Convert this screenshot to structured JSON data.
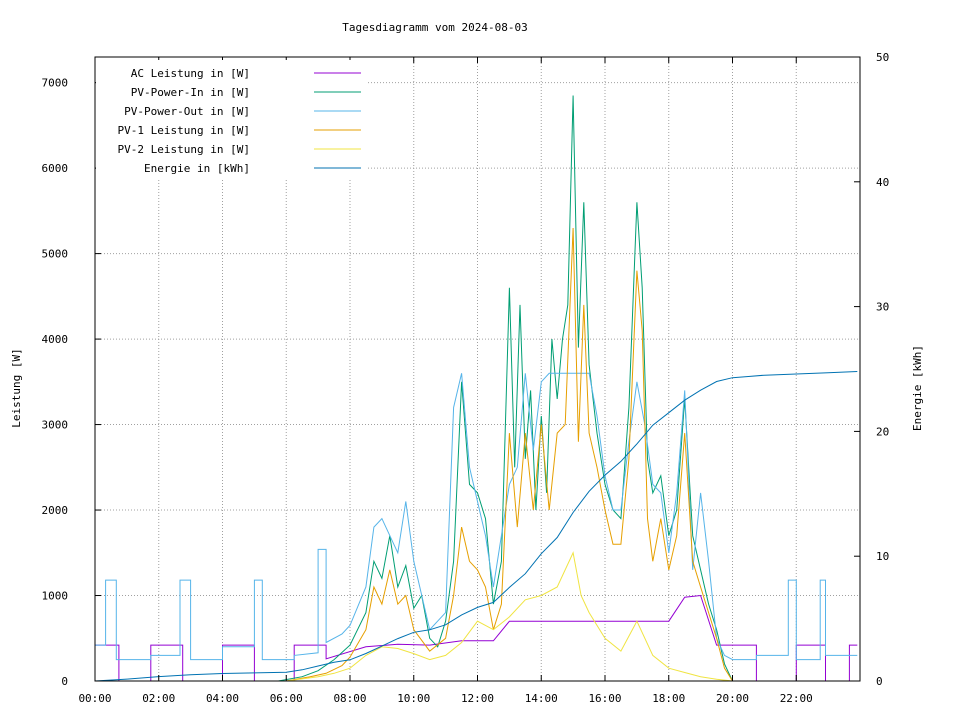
{
  "chart_data": {
    "type": "line",
    "title": "Tagesdiagramm vom 2024-08-03",
    "ylabel": "Leistung [W]",
    "y2label": "Energie [kWh]",
    "xlim": [
      "00:00",
      "24:00"
    ],
    "ylim": [
      0,
      7300
    ],
    "y2lim": [
      0,
      50
    ],
    "grid": true,
    "legend_position": "top-left",
    "x_ticks": [
      "00:00",
      "02:00",
      "04:00",
      "06:00",
      "08:00",
      "10:00",
      "12:00",
      "14:00",
      "16:00",
      "18:00",
      "20:00",
      "22:00"
    ],
    "y_ticks": [
      0,
      1000,
      2000,
      3000,
      4000,
      5000,
      6000,
      7000
    ],
    "y2_ticks": [
      0,
      10,
      20,
      30,
      40,
      50
    ],
    "series": [
      {
        "name": "AC Leistung in [W]",
        "color": "#9400d3",
        "axis": "left",
        "points": [
          [
            "00:00",
            420
          ],
          [
            "00:45",
            420
          ],
          [
            "00:45",
            0
          ],
          [
            "01:45",
            0
          ],
          [
            "01:45",
            420
          ],
          [
            "02:45",
            420
          ],
          [
            "02:45",
            0
          ],
          [
            "04:00",
            0
          ],
          [
            "04:00",
            420
          ],
          [
            "05:00",
            420
          ],
          [
            "05:00",
            0
          ],
          [
            "06:15",
            0
          ],
          [
            "06:15",
            420
          ],
          [
            "07:15",
            420
          ],
          [
            "07:15",
            260
          ],
          [
            "08:30",
            400
          ],
          [
            "09:30",
            430
          ],
          [
            "10:30",
            420
          ],
          [
            "11:30",
            470
          ],
          [
            "12:30",
            470
          ],
          [
            "13:00",
            700
          ],
          [
            "18:00",
            700
          ],
          [
            "18:30",
            980
          ],
          [
            "19:00",
            1000
          ],
          [
            "19:30",
            420
          ],
          [
            "20:45",
            420
          ],
          [
            "20:45",
            0
          ],
          [
            "22:00",
            0
          ],
          [
            "22:00",
            420
          ],
          [
            "22:55",
            420
          ],
          [
            "22:55",
            0
          ],
          [
            "23:40",
            0
          ],
          [
            "23:40",
            420
          ],
          [
            "23:55",
            420
          ]
        ]
      },
      {
        "name": "PV-Power-In in [W]",
        "color": "#009e73",
        "axis": "left",
        "points": [
          [
            "05:45",
            0
          ],
          [
            "06:30",
            50
          ],
          [
            "07:00",
            120
          ],
          [
            "07:30",
            250
          ],
          [
            "08:00",
            420
          ],
          [
            "08:30",
            800
          ],
          [
            "08:45",
            1400
          ],
          [
            "09:00",
            1200
          ],
          [
            "09:15",
            1700
          ],
          [
            "09:30",
            1100
          ],
          [
            "09:45",
            1350
          ],
          [
            "10:00",
            850
          ],
          [
            "10:15",
            1000
          ],
          [
            "10:30",
            500
          ],
          [
            "10:45",
            400
          ],
          [
            "11:00",
            700
          ],
          [
            "11:15",
            1400
          ],
          [
            "11:30",
            3500
          ],
          [
            "11:45",
            2300
          ],
          [
            "12:00",
            2200
          ],
          [
            "12:15",
            1900
          ],
          [
            "12:30",
            900
          ],
          [
            "12:45",
            1400
          ],
          [
            "13:00",
            4600
          ],
          [
            "13:10",
            2500
          ],
          [
            "13:20",
            4400
          ],
          [
            "13:30",
            2600
          ],
          [
            "13:40",
            3400
          ],
          [
            "13:50",
            2000
          ],
          [
            "14:00",
            3100
          ],
          [
            "14:10",
            2200
          ],
          [
            "14:20",
            4000
          ],
          [
            "14:30",
            3300
          ],
          [
            "14:40",
            4000
          ],
          [
            "14:50",
            4400
          ],
          [
            "15:00",
            6850
          ],
          [
            "15:10",
            3900
          ],
          [
            "15:20",
            5600
          ],
          [
            "15:30",
            3700
          ],
          [
            "15:45",
            2900
          ],
          [
            "16:00",
            2300
          ],
          [
            "16:15",
            2000
          ],
          [
            "16:30",
            1900
          ],
          [
            "16:45",
            3200
          ],
          [
            "17:00",
            5600
          ],
          [
            "17:10",
            4600
          ],
          [
            "17:20",
            2600
          ],
          [
            "17:30",
            2200
          ],
          [
            "17:45",
            2400
          ],
          [
            "18:00",
            1700
          ],
          [
            "18:15",
            2000
          ],
          [
            "18:30",
            3300
          ],
          [
            "18:45",
            1700
          ],
          [
            "19:00",
            1300
          ],
          [
            "19:15",
            900
          ],
          [
            "19:30",
            600
          ],
          [
            "19:45",
            200
          ],
          [
            "20:00",
            0
          ]
        ]
      },
      {
        "name": "PV-Power-Out in [W]",
        "color": "#56b4e9",
        "axis": "left",
        "points": [
          [
            "00:00",
            420
          ],
          [
            "00:20",
            420
          ],
          [
            "00:20",
            1180
          ],
          [
            "00:40",
            1180
          ],
          [
            "00:40",
            250
          ],
          [
            "01:45",
            250
          ],
          [
            "01:45",
            300
          ],
          [
            "02:40",
            300
          ],
          [
            "02:40",
            1180
          ],
          [
            "03:00",
            1180
          ],
          [
            "03:00",
            250
          ],
          [
            "04:00",
            250
          ],
          [
            "04:00",
            400
          ],
          [
            "05:00",
            400
          ],
          [
            "05:00",
            1180
          ],
          [
            "05:15",
            1180
          ],
          [
            "05:15",
            250
          ],
          [
            "06:15",
            250
          ],
          [
            "06:15",
            300
          ],
          [
            "07:00",
            330
          ],
          [
            "07:00",
            1540
          ],
          [
            "07:15",
            1540
          ],
          [
            "07:15",
            450
          ],
          [
            "07:45",
            550
          ],
          [
            "08:00",
            650
          ],
          [
            "08:30",
            1100
          ],
          [
            "08:45",
            1800
          ],
          [
            "09:00",
            1900
          ],
          [
            "09:30",
            1500
          ],
          [
            "09:45",
            2100
          ],
          [
            "10:00",
            1400
          ],
          [
            "10:30",
            600
          ],
          [
            "11:00",
            800
          ],
          [
            "11:15",
            3200
          ],
          [
            "11:30",
            3600
          ],
          [
            "11:45",
            2500
          ],
          [
            "12:00",
            2100
          ],
          [
            "12:15",
            1700
          ],
          [
            "12:30",
            1100
          ],
          [
            "12:45",
            1700
          ],
          [
            "13:00",
            2300
          ],
          [
            "13:15",
            2500
          ],
          [
            "13:30",
            3600
          ],
          [
            "13:45",
            2700
          ],
          [
            "14:00",
            3500
          ],
          [
            "14:15",
            3600
          ],
          [
            "14:30",
            3600
          ],
          [
            "15:00",
            3600
          ],
          [
            "15:30",
            3600
          ],
          [
            "15:45",
            3100
          ],
          [
            "16:00",
            2400
          ],
          [
            "16:15",
            2000
          ],
          [
            "16:30",
            2000
          ],
          [
            "16:45",
            2800
          ],
          [
            "17:00",
            3500
          ],
          [
            "17:15",
            3000
          ],
          [
            "17:30",
            2300
          ],
          [
            "17:45",
            2200
          ],
          [
            "18:00",
            1500
          ],
          [
            "18:15",
            2200
          ],
          [
            "18:30",
            3400
          ],
          [
            "18:45",
            1300
          ],
          [
            "19:00",
            2200
          ],
          [
            "19:15",
            1400
          ],
          [
            "19:30",
            500
          ],
          [
            "19:45",
            300
          ],
          [
            "20:00",
            250
          ],
          [
            "20:45",
            250
          ],
          [
            "20:45",
            300
          ],
          [
            "21:45",
            300
          ],
          [
            "21:45",
            1180
          ],
          [
            "22:00",
            1180
          ],
          [
            "22:00",
            250
          ],
          [
            "22:45",
            250
          ],
          [
            "22:45",
            1180
          ],
          [
            "22:55",
            1180
          ],
          [
            "22:55",
            300
          ],
          [
            "23:55",
            300
          ]
        ]
      },
      {
        "name": "PV-1 Leistung in [W]",
        "color": "#e69f00",
        "axis": "left",
        "points": [
          [
            "06:00",
            0
          ],
          [
            "06:45",
            50
          ],
          [
            "07:15",
            90
          ],
          [
            "07:45",
            180
          ],
          [
            "08:00",
            280
          ],
          [
            "08:30",
            600
          ],
          [
            "08:45",
            1100
          ],
          [
            "09:00",
            900
          ],
          [
            "09:15",
            1300
          ],
          [
            "09:30",
            900
          ],
          [
            "09:45",
            1000
          ],
          [
            "10:00",
            600
          ],
          [
            "10:30",
            350
          ],
          [
            "11:00",
            500
          ],
          [
            "11:15",
            1000
          ],
          [
            "11:30",
            1800
          ],
          [
            "11:45",
            1400
          ],
          [
            "12:00",
            1300
          ],
          [
            "12:15",
            1100
          ],
          [
            "12:30",
            600
          ],
          [
            "12:45",
            900
          ],
          [
            "13:00",
            2900
          ],
          [
            "13:15",
            1800
          ],
          [
            "13:30",
            2900
          ],
          [
            "13:45",
            2000
          ],
          [
            "14:00",
            3000
          ],
          [
            "14:15",
            2000
          ],
          [
            "14:30",
            2900
          ],
          [
            "14:45",
            3000
          ],
          [
            "15:00",
            5300
          ],
          [
            "15:10",
            2800
          ],
          [
            "15:20",
            4400
          ],
          [
            "15:30",
            2900
          ],
          [
            "15:45",
            2500
          ],
          [
            "16:00",
            2000
          ],
          [
            "16:15",
            1600
          ],
          [
            "16:30",
            1600
          ],
          [
            "16:45",
            2600
          ],
          [
            "17:00",
            4800
          ],
          [
            "17:10",
            4100
          ],
          [
            "17:20",
            1900
          ],
          [
            "17:30",
            1400
          ],
          [
            "17:45",
            1900
          ],
          [
            "18:00",
            1300
          ],
          [
            "18:15",
            1700
          ],
          [
            "18:30",
            2900
          ],
          [
            "18:45",
            1400
          ],
          [
            "19:00",
            1100
          ],
          [
            "19:15",
            800
          ],
          [
            "19:30",
            500
          ],
          [
            "19:45",
            150
          ],
          [
            "20:00",
            0
          ]
        ]
      },
      {
        "name": "PV-2 Leistung in [W]",
        "color": "#f0e442",
        "axis": "left",
        "points": [
          [
            "06:00",
            0
          ],
          [
            "07:00",
            50
          ],
          [
            "07:30",
            90
          ],
          [
            "08:00",
            150
          ],
          [
            "08:30",
            300
          ],
          [
            "09:00",
            400
          ],
          [
            "09:30",
            380
          ],
          [
            "10:00",
            320
          ],
          [
            "10:30",
            250
          ],
          [
            "11:00",
            300
          ],
          [
            "11:30",
            450
          ],
          [
            "12:00",
            700
          ],
          [
            "12:30",
            600
          ],
          [
            "13:00",
            750
          ],
          [
            "13:30",
            950
          ],
          [
            "14:00",
            1000
          ],
          [
            "14:30",
            1100
          ],
          [
            "15:00",
            1500
          ],
          [
            "15:15",
            1000
          ],
          [
            "15:30",
            800
          ],
          [
            "16:00",
            500
          ],
          [
            "16:30",
            350
          ],
          [
            "17:00",
            700
          ],
          [
            "17:30",
            300
          ],
          [
            "18:00",
            150
          ],
          [
            "18:30",
            100
          ],
          [
            "19:00",
            50
          ],
          [
            "19:30",
            20
          ],
          [
            "20:00",
            0
          ]
        ]
      },
      {
        "name": "Energie in [kWh]",
        "color": "#0072b2",
        "axis": "right",
        "points": [
          [
            "00:00",
            0
          ],
          [
            "01:00",
            0.15
          ],
          [
            "02:00",
            0.35
          ],
          [
            "03:00",
            0.5
          ],
          [
            "04:00",
            0.6
          ],
          [
            "05:00",
            0.65
          ],
          [
            "06:00",
            0.7
          ],
          [
            "06:30",
            0.9
          ],
          [
            "07:00",
            1.2
          ],
          [
            "07:30",
            1.5
          ],
          [
            "08:00",
            1.7
          ],
          [
            "08:30",
            2.2
          ],
          [
            "09:00",
            2.8
          ],
          [
            "09:30",
            3.4
          ],
          [
            "10:00",
            3.9
          ],
          [
            "10:30",
            4.1
          ],
          [
            "11:00",
            4.5
          ],
          [
            "11:30",
            5.3
          ],
          [
            "12:00",
            5.9
          ],
          [
            "12:30",
            6.3
          ],
          [
            "13:00",
            7.5
          ],
          [
            "13:30",
            8.6
          ],
          [
            "14:00",
            10.2
          ],
          [
            "14:30",
            11.5
          ],
          [
            "15:00",
            13.5
          ],
          [
            "15:30",
            15.2
          ],
          [
            "16:00",
            16.5
          ],
          [
            "16:30",
            17.6
          ],
          [
            "17:00",
            19.0
          ],
          [
            "17:30",
            20.5
          ],
          [
            "18:00",
            21.5
          ],
          [
            "18:30",
            22.5
          ],
          [
            "19:00",
            23.3
          ],
          [
            "19:30",
            24.0
          ],
          [
            "20:00",
            24.3
          ],
          [
            "20:30",
            24.4
          ],
          [
            "21:00",
            24.5
          ],
          [
            "22:00",
            24.6
          ],
          [
            "23:00",
            24.7
          ],
          [
            "23:55",
            24.8
          ]
        ]
      }
    ]
  }
}
